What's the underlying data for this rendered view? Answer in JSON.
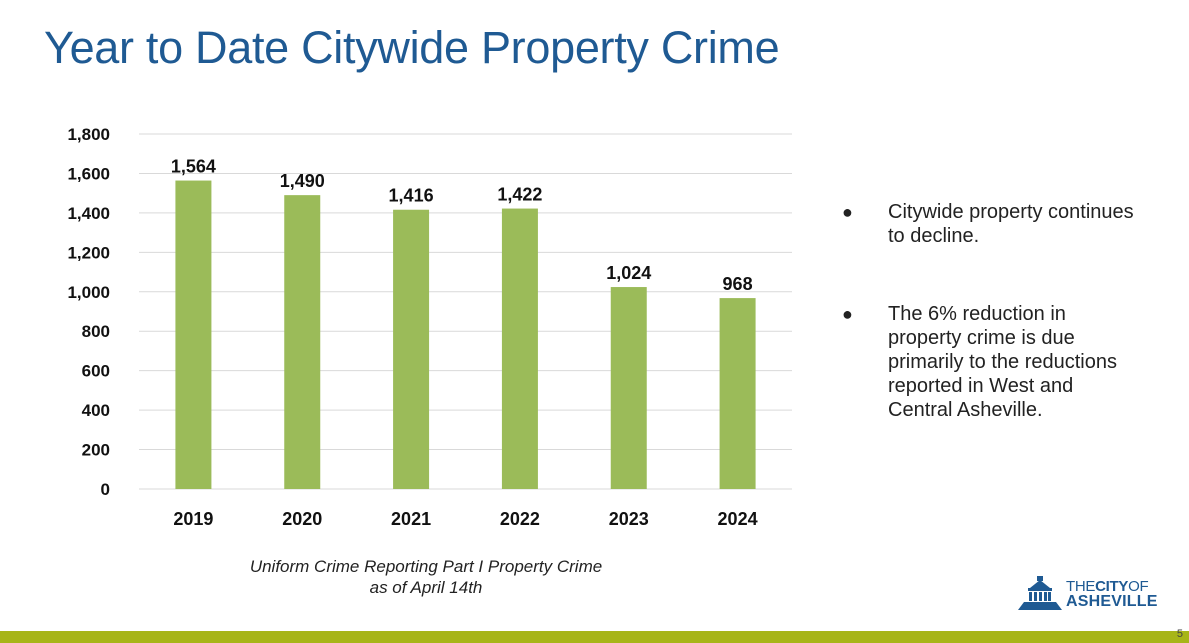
{
  "slide": {
    "title": "Year to Date Citywide Property Crime",
    "caption_line1": "Uniform Crime Reporting Part I Property Crime",
    "caption_line2": "as of April 14th",
    "bullets": [
      "Citywide property continues to decline.",
      "The 6% reduction in property crime is due primarily to the reductions reported in West and Central Asheville."
    ],
    "bullet_glyph": "●",
    "page_number": "5"
  },
  "logo": {
    "the": "THE",
    "city": "CITY",
    "of": "OF",
    "name": "ASHEVILLE",
    "icon": "city-hall-icon"
  },
  "colors": {
    "bar": "#9bbb59",
    "title": "#1f5a93",
    "footer": "#a7b518",
    "grid": "#d9d9d9"
  },
  "chart_data": {
    "type": "bar",
    "categories": [
      "2019",
      "2020",
      "2021",
      "2022",
      "2023",
      "2024"
    ],
    "values": [
      1564,
      1490,
      1416,
      1422,
      1024,
      968
    ],
    "data_labels": [
      "1,564",
      "1,490",
      "1,416",
      "1,422",
      "1,024",
      "968"
    ],
    "yticks": [
      "0",
      "200",
      "400",
      "600",
      "800",
      "1,000",
      "1,200",
      "1,400",
      "1,600",
      "1,800"
    ],
    "ylim": [
      0,
      1800
    ],
    "grid": true,
    "legend": "none"
  }
}
